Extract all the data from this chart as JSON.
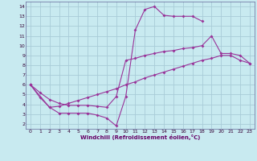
{
  "xlabel": "Windchill (Refroidissement éolien,°C)",
  "bg_color": "#c8eaf0",
  "grid_color": "#a8ccd8",
  "line_color": "#993399",
  "xlim": [
    -0.5,
    23.5
  ],
  "ylim": [
    1.5,
    14.5
  ],
  "xticks": [
    0,
    1,
    2,
    3,
    4,
    5,
    6,
    7,
    8,
    9,
    10,
    11,
    12,
    13,
    14,
    15,
    16,
    17,
    18,
    19,
    20,
    21,
    22,
    23
  ],
  "yticks": [
    2,
    3,
    4,
    5,
    6,
    7,
    8,
    9,
    10,
    11,
    12,
    13,
    14
  ],
  "line1_x": [
    0,
    1,
    2,
    3,
    4,
    5,
    6,
    7,
    8,
    9,
    10,
    11,
    12,
    13,
    14,
    15,
    16,
    17,
    18
  ],
  "line1_y": [
    6.0,
    4.7,
    3.7,
    3.1,
    3.1,
    3.1,
    3.1,
    2.9,
    2.6,
    1.8,
    4.8,
    11.6,
    13.7,
    14.0,
    13.1,
    13.0,
    13.0,
    13.0,
    12.5
  ],
  "line2_x": [
    0,
    1,
    2,
    3,
    4,
    5,
    6,
    7,
    8,
    9,
    10,
    11,
    12,
    13,
    14,
    15,
    16,
    17,
    18,
    19,
    20,
    21,
    22,
    23
  ],
  "line2_y": [
    6.0,
    5.2,
    4.5,
    4.1,
    3.9,
    3.9,
    3.9,
    3.8,
    3.7,
    4.8,
    8.5,
    8.7,
    9.0,
    9.2,
    9.4,
    9.5,
    9.7,
    9.8,
    10.0,
    11.0,
    9.2,
    9.2,
    9.0,
    8.2
  ],
  "line3_x": [
    0,
    2,
    3,
    4,
    5,
    6,
    7,
    8,
    9,
    10,
    11,
    12,
    13,
    14,
    15,
    16,
    17,
    18,
    19,
    20,
    21,
    22,
    23
  ],
  "line3_y": [
    6.0,
    3.7,
    3.8,
    4.1,
    4.4,
    4.7,
    5.0,
    5.3,
    5.6,
    6.0,
    6.3,
    6.7,
    7.0,
    7.3,
    7.6,
    7.9,
    8.2,
    8.5,
    8.7,
    9.0,
    9.0,
    8.5,
    8.2
  ],
  "xlabel_color": "#660066",
  "tick_color": "#330033",
  "spine_color": "#666699"
}
